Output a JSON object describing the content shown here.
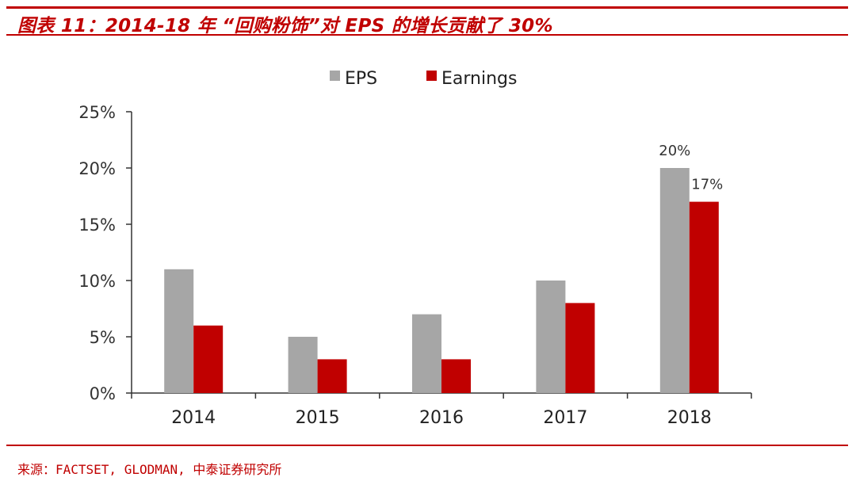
{
  "header": {
    "title": "图表 11：2014-18 年  “回购粉饰”对 EPS 的增长贡献了 30%"
  },
  "footer": {
    "source": "来源：FACTSET, GLODMAN, 中泰证券研究所"
  },
  "colors": {
    "accent": "#c00000",
    "eps": "#a6a6a6",
    "earnings": "#c00000"
  },
  "chart_data": {
    "type": "bar",
    "title": "",
    "xlabel": "",
    "ylabel": "",
    "categories": [
      "2014",
      "2015",
      "2016",
      "2017",
      "2018"
    ],
    "series": [
      {
        "name": "EPS",
        "color": "#a6a6a6",
        "values": [
          0.11,
          0.05,
          0.07,
          0.1,
          0.2
        ]
      },
      {
        "name": "Earnings",
        "color": "#c00000",
        "values": [
          0.06,
          0.03,
          0.03,
          0.08,
          0.17
        ]
      }
    ],
    "ylim": [
      0,
      0.25
    ],
    "yticks": [
      0,
      0.05,
      0.1,
      0.15,
      0.2,
      0.25
    ],
    "ytick_labels": [
      "0%",
      "5%",
      "10%",
      "15%",
      "20%",
      "25%"
    ],
    "data_labels": [
      {
        "series": 0,
        "category": 4,
        "text": "20%"
      },
      {
        "series": 1,
        "category": 4,
        "text": "17%"
      }
    ],
    "legend_position": "top-center",
    "grid": false
  }
}
